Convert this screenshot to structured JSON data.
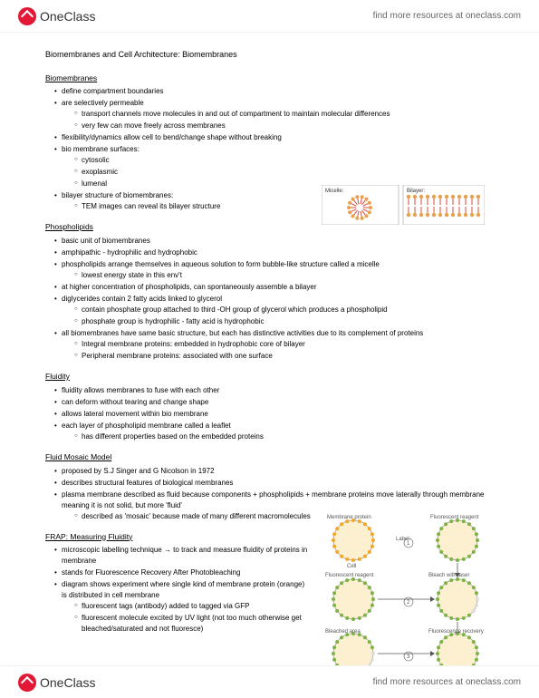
{
  "brand": {
    "logo_text": "OneClass",
    "header_link": "find more resources at oneclass.com",
    "footer_link": "find more resources at oneclass.com"
  },
  "page": {
    "title": "Biomembranes and Cell Architecture: Biomembranes"
  },
  "sections": {
    "biomembranes": {
      "heading": "Biomembranes",
      "b1": "define compartment boundaries",
      "b2": "are selectively permeable",
      "b2a": "transport channels move molecules in and out of compartment to maintain molecular differences",
      "b2b": "very few can move freely across membranes",
      "b3": "flexibility/dynamics allow cell to bend/change shape without breaking",
      "b4": "bio membrane surfaces:",
      "b4a": "cytosolic",
      "b4b": "exoplasmic",
      "b4c": "lumenal",
      "b5": "bilayer structure of biomembranes:",
      "b5a": "TEM images can reveal its bilayer structure"
    },
    "phospholipids": {
      "heading": "Phospholipids",
      "p1": "basic unit of biomembranes",
      "p2": "amphipathic - hydrophilic and hydrophobic",
      "p3": "phospholipids arrange themselves in aqueous solution to form bubble-like structure called a micelle",
      "p3a": "lowest energy state in this env't",
      "p4": "at higher concentration of phospholipids, can spontaneously assemble a bilayer",
      "p5": "diglycerides contain 2 fatty acids linked to glycerol",
      "p5a": "contain phosphate group attached to third -OH group of glycerol which produces a phospholipid",
      "p5b": "phosphate group is hydrophilic - fatty acid is hydrophobic",
      "p6": "all biomembranes have same basic structure, but each has distinctive activities due to its complement of proteins",
      "p6a": "Integral membrane proteins: embedded in hydrophobic core of bilayer",
      "p6b": "Peripheral membrane proteins: associated with one surface"
    },
    "fluidity": {
      "heading": "Fluidity",
      "f1": "fluidity allows membranes to fuse with each other",
      "f2": "can deform without tearing and change shape",
      "f3": "allows lateral movement within bio membrane",
      "f4": "each layer of phospholipid membrane called a leaflet",
      "f4a": "has different properties based on the embedded proteins"
    },
    "fmm": {
      "heading": "Fluid Mosaic Model",
      "m1": "proposed by S.J Singer and G Nicolson in 1972",
      "m2": "describes structural features of biological membranes",
      "m3": "plasma membrane described as fluid because components + phospholipids + membrane proteins move laterally through membrane meaning it is not solid, but more 'fluid'",
      "m3a": "described as 'mosaic' because made of many different macromolecules"
    },
    "frap": {
      "heading": "FRAP: Measuring Fluidity",
      "r1": "microscopic labelling technique → to track and measure fluidity of proteins in membrane",
      "r2": "stands for Fluorescence Recovery After Photobleaching",
      "r3": "diagram shows experiment where single kind of membrane protein (orange) is distributed in cell membrane",
      "r3a": "fluorescent tags (antibody) added to tagged via GFP",
      "r3b": "fluorescent molecule excited by UV light (not too much otherwise get bleached/saturated and not fluoresce)"
    }
  },
  "diagrams": {
    "micelle_bilayer": {
      "label_left": "Micelle:",
      "label_right": "Bilayer:",
      "head_color": "#e8a04a",
      "tail_color": "#d94c3d",
      "border_color": "#888888"
    },
    "frap": {
      "cell_fill": "#fdf0d0",
      "dot_color": "#f5a623",
      "reagent_color": "#7cb342",
      "bleach_color": "#dddddd",
      "border_color": "#999999",
      "arrow_color": "#555555",
      "lbl_cell": "Cell",
      "lbl_mp": "Membrane protein",
      "lbl_fr": "Fluorescent reagent",
      "lbl_label": "Label",
      "lbl_bleach": "Bleach with laser",
      "lbl_bleached": "Bleached area",
      "lbl_recover": "Fluorescence recovery",
      "step1": "1",
      "step2": "2",
      "step3": "3"
    }
  },
  "colors": {
    "logo_red": "#e31837",
    "text": "#000000",
    "muted": "#666666"
  }
}
